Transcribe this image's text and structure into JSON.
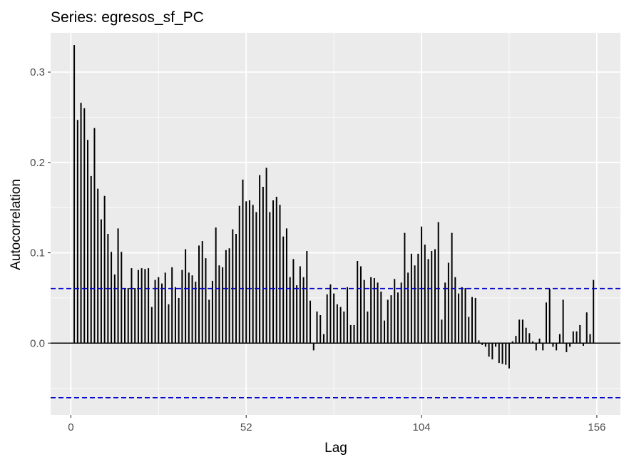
{
  "chart_data": {
    "type": "bar",
    "title": "Series: egresos_sf_PC",
    "xlabel": "Lag",
    "ylabel": "Autocorrelation",
    "xlim": [
      -6,
      163
    ],
    "ylim": [
      -0.0795,
      0.3435
    ],
    "x_ticks": [
      0,
      52,
      104,
      156
    ],
    "y_ticks": [
      0.0,
      0.1,
      0.2,
      0.3
    ],
    "y_tick_labels": [
      "0.0",
      "0.1",
      "0.2",
      "0.3"
    ],
    "x_tick_labels": [
      "0",
      "52",
      "104",
      "156"
    ],
    "confidence_limit": 0.0604,
    "grid": true,
    "colors": {
      "panel": "#EBEBEB",
      "grid": "#FFFFFF",
      "bars": "#000000",
      "confidence": "#0000CC"
    },
    "lags": [
      1,
      2,
      3,
      4,
      5,
      6,
      7,
      8,
      9,
      10,
      11,
      12,
      13,
      14,
      15,
      16,
      17,
      18,
      19,
      20,
      21,
      22,
      23,
      24,
      25,
      26,
      27,
      28,
      29,
      30,
      31,
      32,
      33,
      34,
      35,
      36,
      37,
      38,
      39,
      40,
      41,
      42,
      43,
      44,
      45,
      46,
      47,
      48,
      49,
      50,
      51,
      52,
      53,
      54,
      55,
      56,
      57,
      58,
      59,
      60,
      61,
      62,
      63,
      64,
      65,
      66,
      67,
      68,
      69,
      70,
      71,
      72,
      73,
      74,
      75,
      76,
      77,
      78,
      79,
      80,
      81,
      82,
      83,
      84,
      85,
      86,
      87,
      88,
      89,
      90,
      91,
      92,
      93,
      94,
      95,
      96,
      97,
      98,
      99,
      100,
      101,
      102,
      103,
      104,
      105,
      106,
      107,
      108,
      109,
      110,
      111,
      112,
      113,
      114,
      115,
      116,
      117,
      118,
      119,
      120,
      121,
      122,
      123,
      124,
      125,
      126,
      127,
      128,
      129,
      130,
      131,
      132,
      133,
      134,
      135,
      136,
      137,
      138,
      139,
      140,
      141,
      142,
      143,
      144,
      145,
      146,
      147,
      148,
      149,
      150,
      151,
      152,
      153,
      154,
      155,
      156
    ],
    "values": [
      0.33,
      0.247,
      0.266,
      0.26,
      0.225,
      0.185,
      0.238,
      0.171,
      0.137,
      0.163,
      0.121,
      0.101,
      0.076,
      0.127,
      0.101,
      0.061,
      0.061,
      0.083,
      0.061,
      0.081,
      0.083,
      0.082,
      0.083,
      0.04,
      0.07,
      0.073,
      0.066,
      0.078,
      0.043,
      0.084,
      0.062,
      0.05,
      0.081,
      0.104,
      0.078,
      0.075,
      0.068,
      0.108,
      0.113,
      0.094,
      0.048,
      0.069,
      0.128,
      0.086,
      0.084,
      0.103,
      0.105,
      0.126,
      0.121,
      0.152,
      0.181,
      0.157,
      0.158,
      0.153,
      0.145,
      0.186,
      0.173,
      0.194,
      0.145,
      0.158,
      0.162,
      0.153,
      0.118,
      0.127,
      0.073,
      0.093,
      0.064,
      0.085,
      0.073,
      0.102,
      0.047,
      -0.008,
      0.035,
      0.031,
      0.01,
      0.054,
      0.065,
      0.055,
      0.043,
      0.04,
      0.035,
      0.062,
      0.02,
      0.02,
      0.091,
      0.085,
      0.07,
      0.035,
      0.073,
      0.072,
      0.067,
      0.057,
      0.025,
      0.048,
      0.053,
      0.071,
      0.056,
      0.067,
      0.122,
      0.078,
      0.099,
      0.086,
      0.099,
      0.129,
      0.109,
      0.093,
      0.102,
      0.104,
      0.134,
      0.026,
      0.067,
      0.089,
      0.122,
      0.073,
      0.055,
      0.062,
      0.061,
      0.029,
      0.051,
      0.05,
      0.003,
      -0.002,
      -0.004,
      -0.015,
      -0.018,
      -0.004,
      -0.022,
      -0.023,
      -0.024,
      -0.028,
      0.002,
      0.008,
      0.026,
      0.026,
      0.017,
      0.011,
      0.002,
      -0.008,
      0.005,
      -0.008,
      0.045,
      0.06,
      -0.004,
      -0.008,
      0.01,
      0.048,
      -0.01,
      -0.004,
      0.013,
      0.013,
      0.02,
      -0.003,
      0.034,
      0.01,
      0.07,
      0.0
    ]
  }
}
